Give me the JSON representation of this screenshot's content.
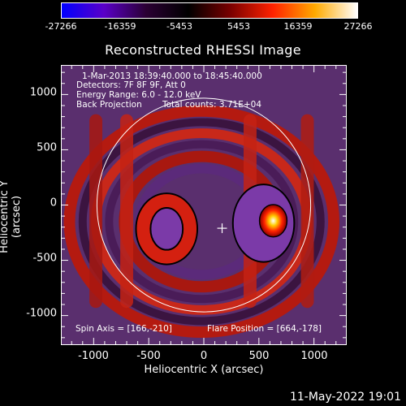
{
  "colorbar": {
    "tick_labels": [
      "-27266",
      "-16359",
      "-5453",
      "5453",
      "16359",
      "27266"
    ],
    "min": -27266,
    "max": 27266,
    "colors": [
      "#0000ff",
      "#5a00c8",
      "#2a0033",
      "#000000",
      "#7a0000",
      "#ff2200",
      "#ffaa00",
      "#ffffff"
    ]
  },
  "title": "Reconstructed RHESSI Image",
  "info": {
    "line1": "1-Mar-2013 18:39:40.000 to 18:45:40.000",
    "line2": "Detectors: 7F 8F 9F, Att 0",
    "line3": "Energy Range: 6.0 - 12.0 keV",
    "line4_left": "Back Projection",
    "line4_right": "Total counts: 3.71E+04"
  },
  "footer_left": "Spin Axis = [166,-210]",
  "footer_right": "Flare Position = [664,-178]",
  "axes": {
    "xlabel": "Heliocentric X (arcsec)",
    "ylabel": "Heliocentric Y (arcsec)",
    "xticks": [
      "-1000",
      "-500",
      "0",
      "500",
      "1000"
    ],
    "yticks": [
      "1000",
      "500",
      "0",
      "-500",
      "-1000"
    ],
    "xlim": [
      -1290,
      1290
    ],
    "ylim": [
      -1260,
      1260
    ]
  },
  "solar_limb_radius_arcsec": 970,
  "spin_axis": [
    166,
    -210
  ],
  "flare_position": [
    664,
    -178
  ],
  "timestamp": "11-May-2022 19:01"
}
